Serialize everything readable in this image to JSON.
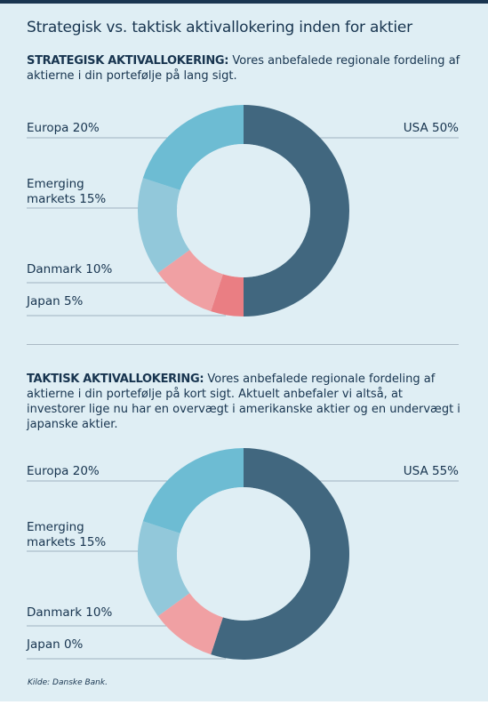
{
  "title": "Strategisk vs. taktisk aktivallokering inden for aktier",
  "sections": [
    {
      "heading": "STRATEGISK AKTIVALLOKERING:",
      "text": " Vores anbefalede regionale fordeling af aktierne i din portefølje på lang sigt."
    },
    {
      "heading": "TAKTISK AKTIVALLOKERING:",
      "text": "  Vores anbefalede regionale fordeling af aktierne i din portefølje på kort sigt. Aktuelt anbefaler vi altså, at investorer lige nu har en overvægt i amerikanske aktier og en undervægt i japanske aktier."
    }
  ],
  "colors": {
    "USA": "#41677f",
    "Europa": "#6dbcd3",
    "Emerging markets": "#92c8da",
    "Danmark": "#f0a0a3",
    "Japan": "#ea7e83",
    "hole": "#dfeef4",
    "leader": "#9fb2c1"
  },
  "chart_data": [
    {
      "type": "pie",
      "donut": true,
      "categories": [
        "USA",
        "Japan",
        "Danmark",
        "Emerging markets",
        "Europa"
      ],
      "values": [
        50,
        5,
        10,
        15,
        20
      ],
      "labels": {
        "USA": "USA 50%",
        "Europa": "Europa 20%",
        "Emerging markets": "Emerging\nmarkets 15%",
        "Danmark": "Danmark 10%",
        "Japan": "Japan 5%"
      }
    },
    {
      "type": "pie",
      "donut": true,
      "categories": [
        "USA",
        "Japan",
        "Danmark",
        "Emerging markets",
        "Europa"
      ],
      "values": [
        55,
        0,
        10,
        15,
        20
      ],
      "labels": {
        "USA": "USA 55%",
        "Europa": "Europa 20%",
        "Emerging markets": "Emerging\nmarkets 15%",
        "Danmark": "Danmark 10%",
        "Japan": "Japan 0%"
      }
    }
  ],
  "source": "Kilde: Danske Bank."
}
